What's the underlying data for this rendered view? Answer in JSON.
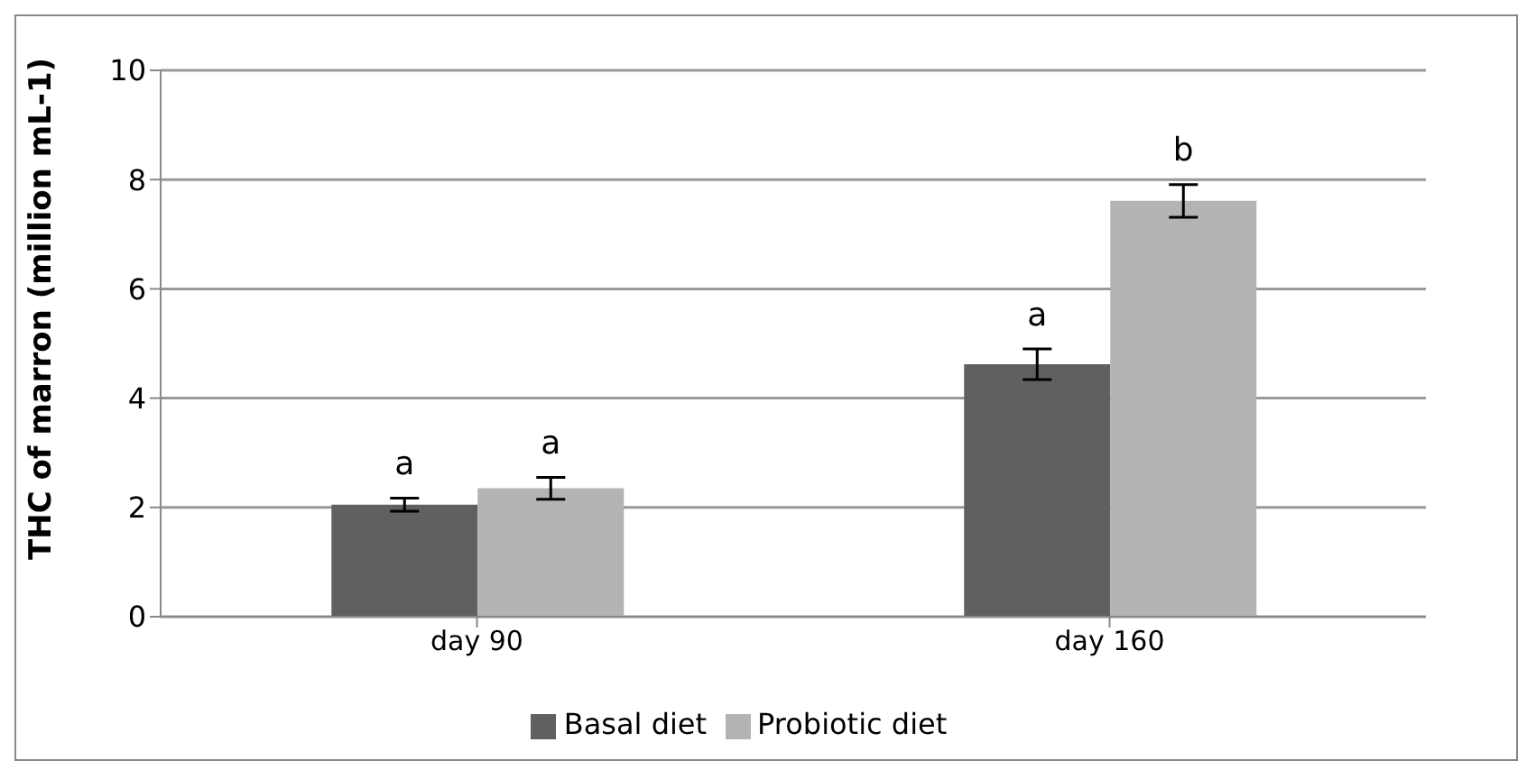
{
  "chart_data": {
    "type": "bar",
    "ylabel": "THC of marron (million mL-1)",
    "categories": [
      "day 90",
      "day 160"
    ],
    "series": [
      {
        "name": "Basal diet",
        "color": "#606060",
        "values": [
          2.05,
          4.62
        ],
        "errors": [
          0.12,
          0.28
        ]
      },
      {
        "name": "Probiotic diet",
        "color": "#b3b3b3",
        "values": [
          2.35,
          7.61
        ],
        "errors": [
          0.2,
          0.3
        ]
      }
    ],
    "ylim": [
      0,
      10
    ],
    "yticks": [
      0,
      2,
      4,
      6,
      8,
      10
    ],
    "grid": "y",
    "legend": "bottom",
    "annotations": [
      "a",
      "a",
      "a",
      "b"
    ]
  }
}
